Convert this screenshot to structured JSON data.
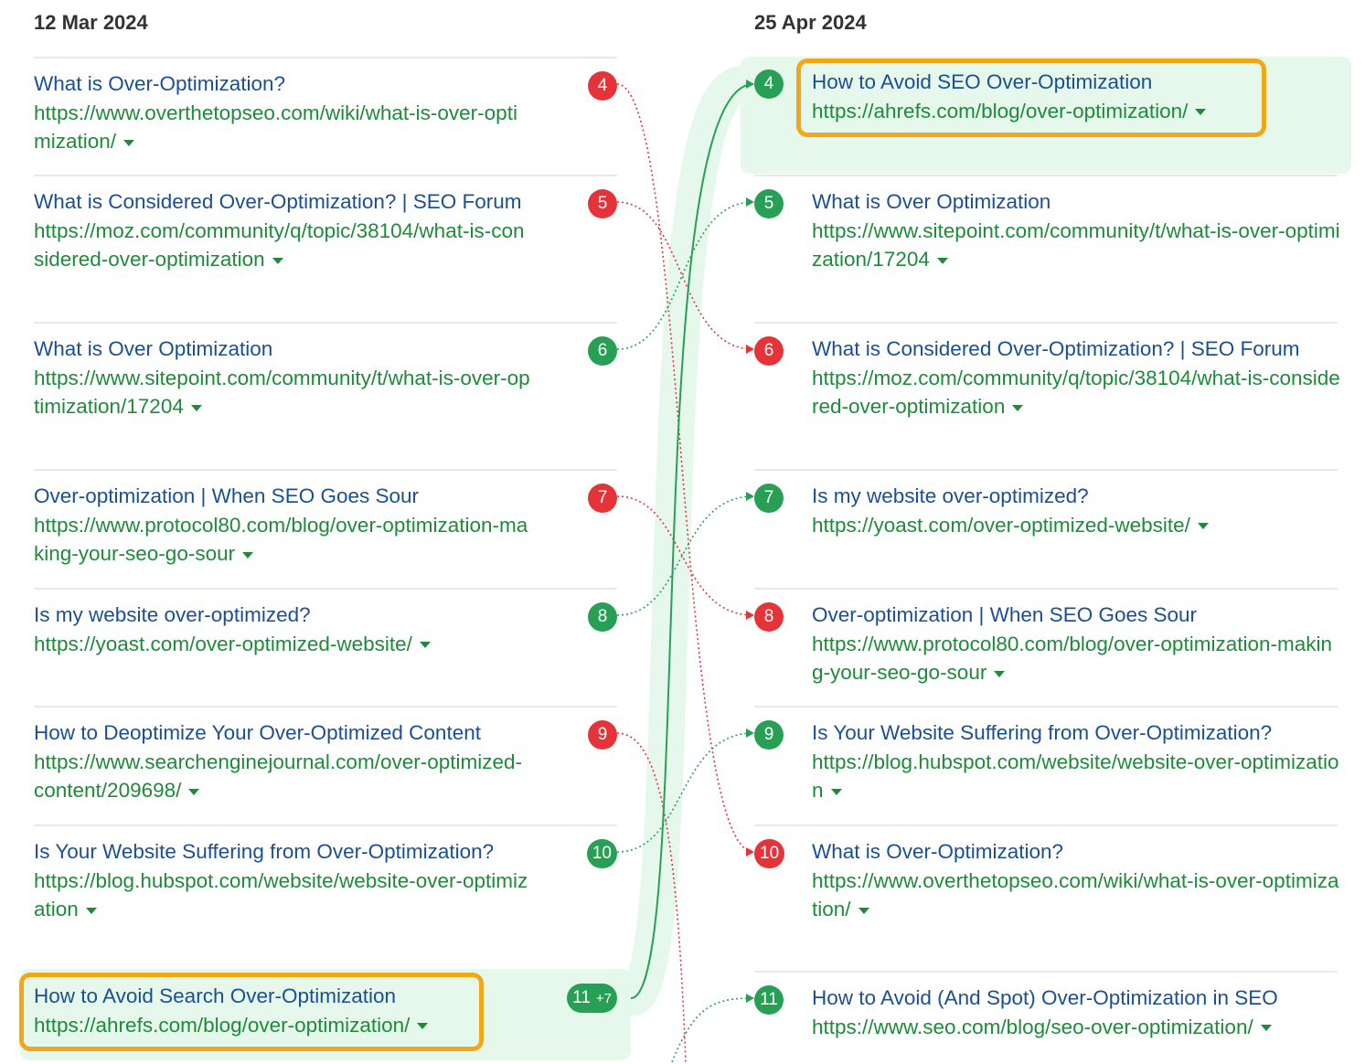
{
  "left": {
    "date": "12 Mar 2024",
    "items": [
      {
        "rank": "4",
        "title": "What is Over-Optimization?",
        "url": "https://www.overthetopseo.com/wiki/what-is-over-optimization/",
        "change": "down"
      },
      {
        "rank": "5",
        "title": "What is Considered Over-Optimization? | SEO Forum",
        "url": "https://moz.com/community/q/topic/38104/what-is-considered-over-optimization",
        "change": "down"
      },
      {
        "rank": "6",
        "title": "What is Over Optimization",
        "url": "https://www.sitepoint.com/community/t/what-is-over-optimization/17204",
        "change": "up"
      },
      {
        "rank": "7",
        "title": "Over-optimization | When SEO Goes Sour",
        "url": "https://www.protocol80.com/blog/over-optimization-making-your-seo-go-sour",
        "change": "down"
      },
      {
        "rank": "8",
        "title": "Is my website over-optimized?",
        "url": "https://yoast.com/over-optimized-website/",
        "change": "up"
      },
      {
        "rank": "9",
        "title": "How to Deoptimize Your Over-Optimized Content",
        "url": "https://www.searchenginejournal.com/over-optimized-content/209698/",
        "change": "down"
      },
      {
        "rank": "10",
        "title": "Is Your Website Suffering from Over-Optimization?",
        "url": "https://blog.hubspot.com/website/website-over-optimization",
        "change": "up"
      },
      {
        "rank": "11",
        "extra": "+7",
        "title": "How to Avoid Search Over-Optimization",
        "url": "https://ahrefs.com/blog/over-optimization/",
        "change": "up",
        "highlight": true
      }
    ]
  },
  "right": {
    "date": "25 Apr 2024",
    "items": [
      {
        "rank": "4",
        "title": "How to Avoid SEO Over-Optimization",
        "url": "https://ahrefs.com/blog/over-optimization/",
        "change": "up",
        "highlight": true
      },
      {
        "rank": "5",
        "title": "What is Over Optimization",
        "url": "https://www.sitepoint.com/community/t/what-is-over-optimization/17204",
        "change": "up"
      },
      {
        "rank": "6",
        "title": "What is Considered Over-Optimization? | SEO Forum",
        "url": "https://moz.com/community/q/topic/38104/what-is-considered-over-optimization",
        "change": "down"
      },
      {
        "rank": "7",
        "title": "Is my website over-optimized?",
        "url": "https://yoast.com/over-optimized-website/",
        "change": "up"
      },
      {
        "rank": "8",
        "title": "Over-optimization | When SEO Goes Sour",
        "url": "https://www.protocol80.com/blog/over-optimization-making-your-seo-go-sour",
        "change": "down"
      },
      {
        "rank": "9",
        "title": "Is Your Website Suffering from Over-Optimization?",
        "url": "https://blog.hubspot.com/website/website-over-optimization",
        "change": "up"
      },
      {
        "rank": "10",
        "title": "What is Over-Optimization?",
        "url": "https://www.overthetopseo.com/wiki/what-is-over-optimization/",
        "change": "down"
      },
      {
        "rank": "11",
        "title": "How to Avoid (And Spot) Over-Optimization in SEO",
        "url": "https://www.seo.com/blog/seo-over-optimization/",
        "change": "up"
      }
    ]
  },
  "colors": {
    "up": "#27a055",
    "down": "#e5333a",
    "highlight": "#f0a818",
    "highlight_bg": "#e6f8ec"
  }
}
